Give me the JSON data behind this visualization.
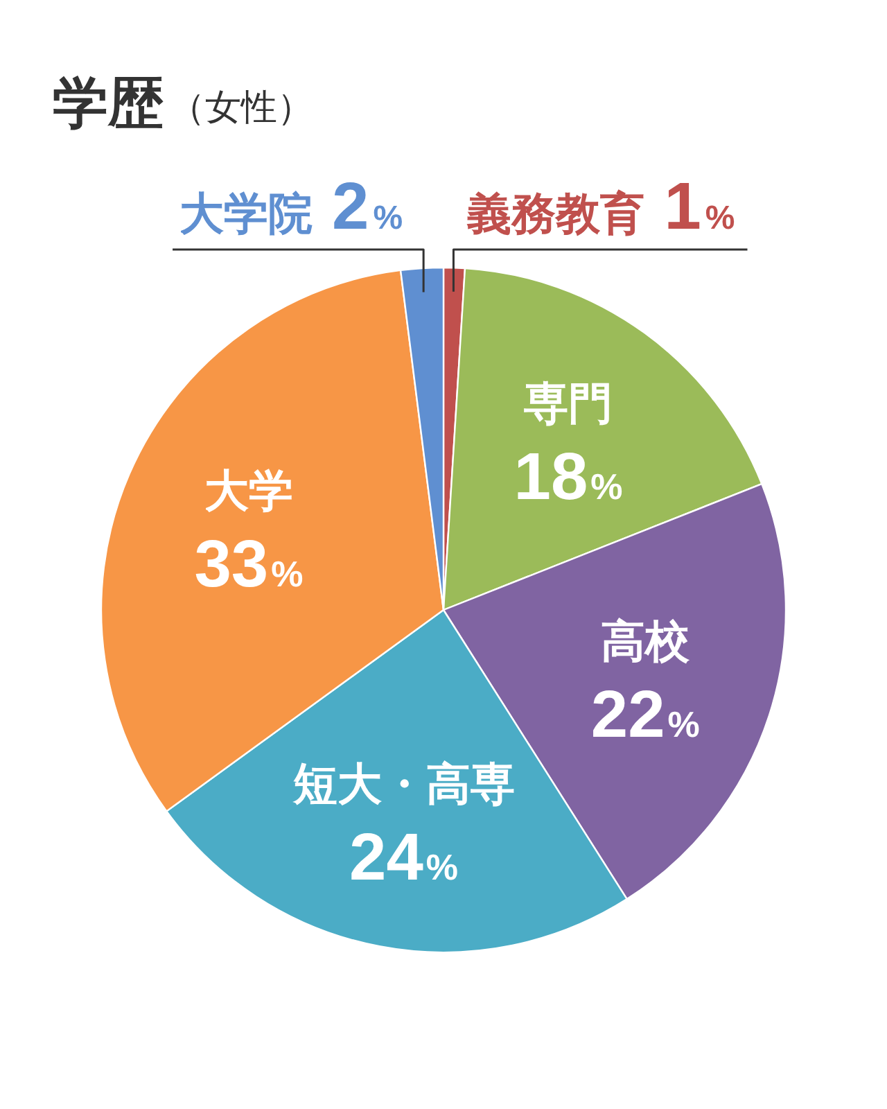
{
  "chart_data": {
    "type": "pie",
    "title": "学歴",
    "subtitle": "（女性）",
    "categories": [
      "義務教育",
      "専門",
      "高校",
      "短大・高専",
      "大学",
      "大学院"
    ],
    "values": [
      1,
      18,
      22,
      24,
      33,
      2
    ],
    "colors": [
      "#c0504d",
      "#9bbb59",
      "#8064a2",
      "#4bacc6",
      "#f79646",
      "#5f8fd1"
    ],
    "value_labels": [
      "1%",
      "18%",
      "22%",
      "24%",
      "33%",
      "2%"
    ]
  }
}
